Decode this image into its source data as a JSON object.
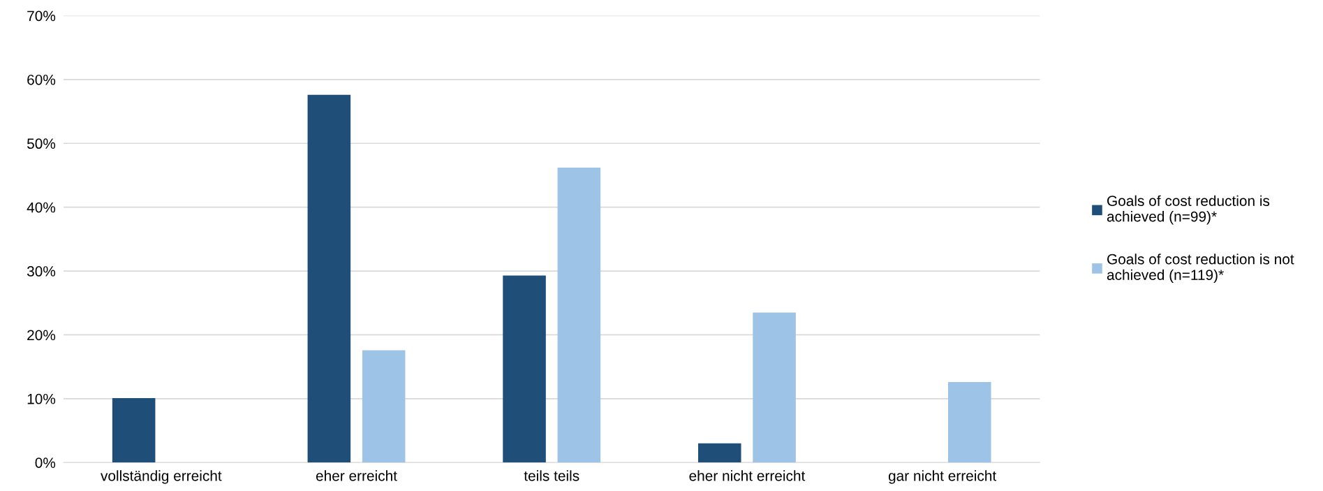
{
  "chart_data": {
    "type": "bar",
    "categories": [
      "vollständig erreicht",
      "eher erreicht",
      "teils teils",
      "eher nicht erreicht",
      "gar nicht erreicht"
    ],
    "series": [
      {
        "name": "Goals of cost reduction is\nachieved (n=99)*",
        "color": "#1f4e79",
        "values": [
          10.1,
          57.6,
          29.3,
          3.0,
          0
        ]
      },
      {
        "name": "Goals of cost reduction is not\nachieved (n=119)*",
        "color": "#9dc3e6",
        "values": [
          0,
          17.6,
          46.2,
          23.5,
          12.6
        ]
      }
    ],
    "ylim": [
      0,
      70
    ],
    "yticks": [
      {
        "value": 0,
        "label": "0%"
      },
      {
        "value": 10,
        "label": "10%"
      },
      {
        "value": 20,
        "label": "20%"
      },
      {
        "value": 30,
        "label": "30%"
      },
      {
        "value": 40,
        "label": "40%"
      },
      {
        "value": 50,
        "label": "50%"
      },
      {
        "value": 60,
        "label": "60%"
      },
      {
        "value": 70,
        "label": "70%"
      }
    ],
    "grid": "y",
    "legend": "right"
  }
}
